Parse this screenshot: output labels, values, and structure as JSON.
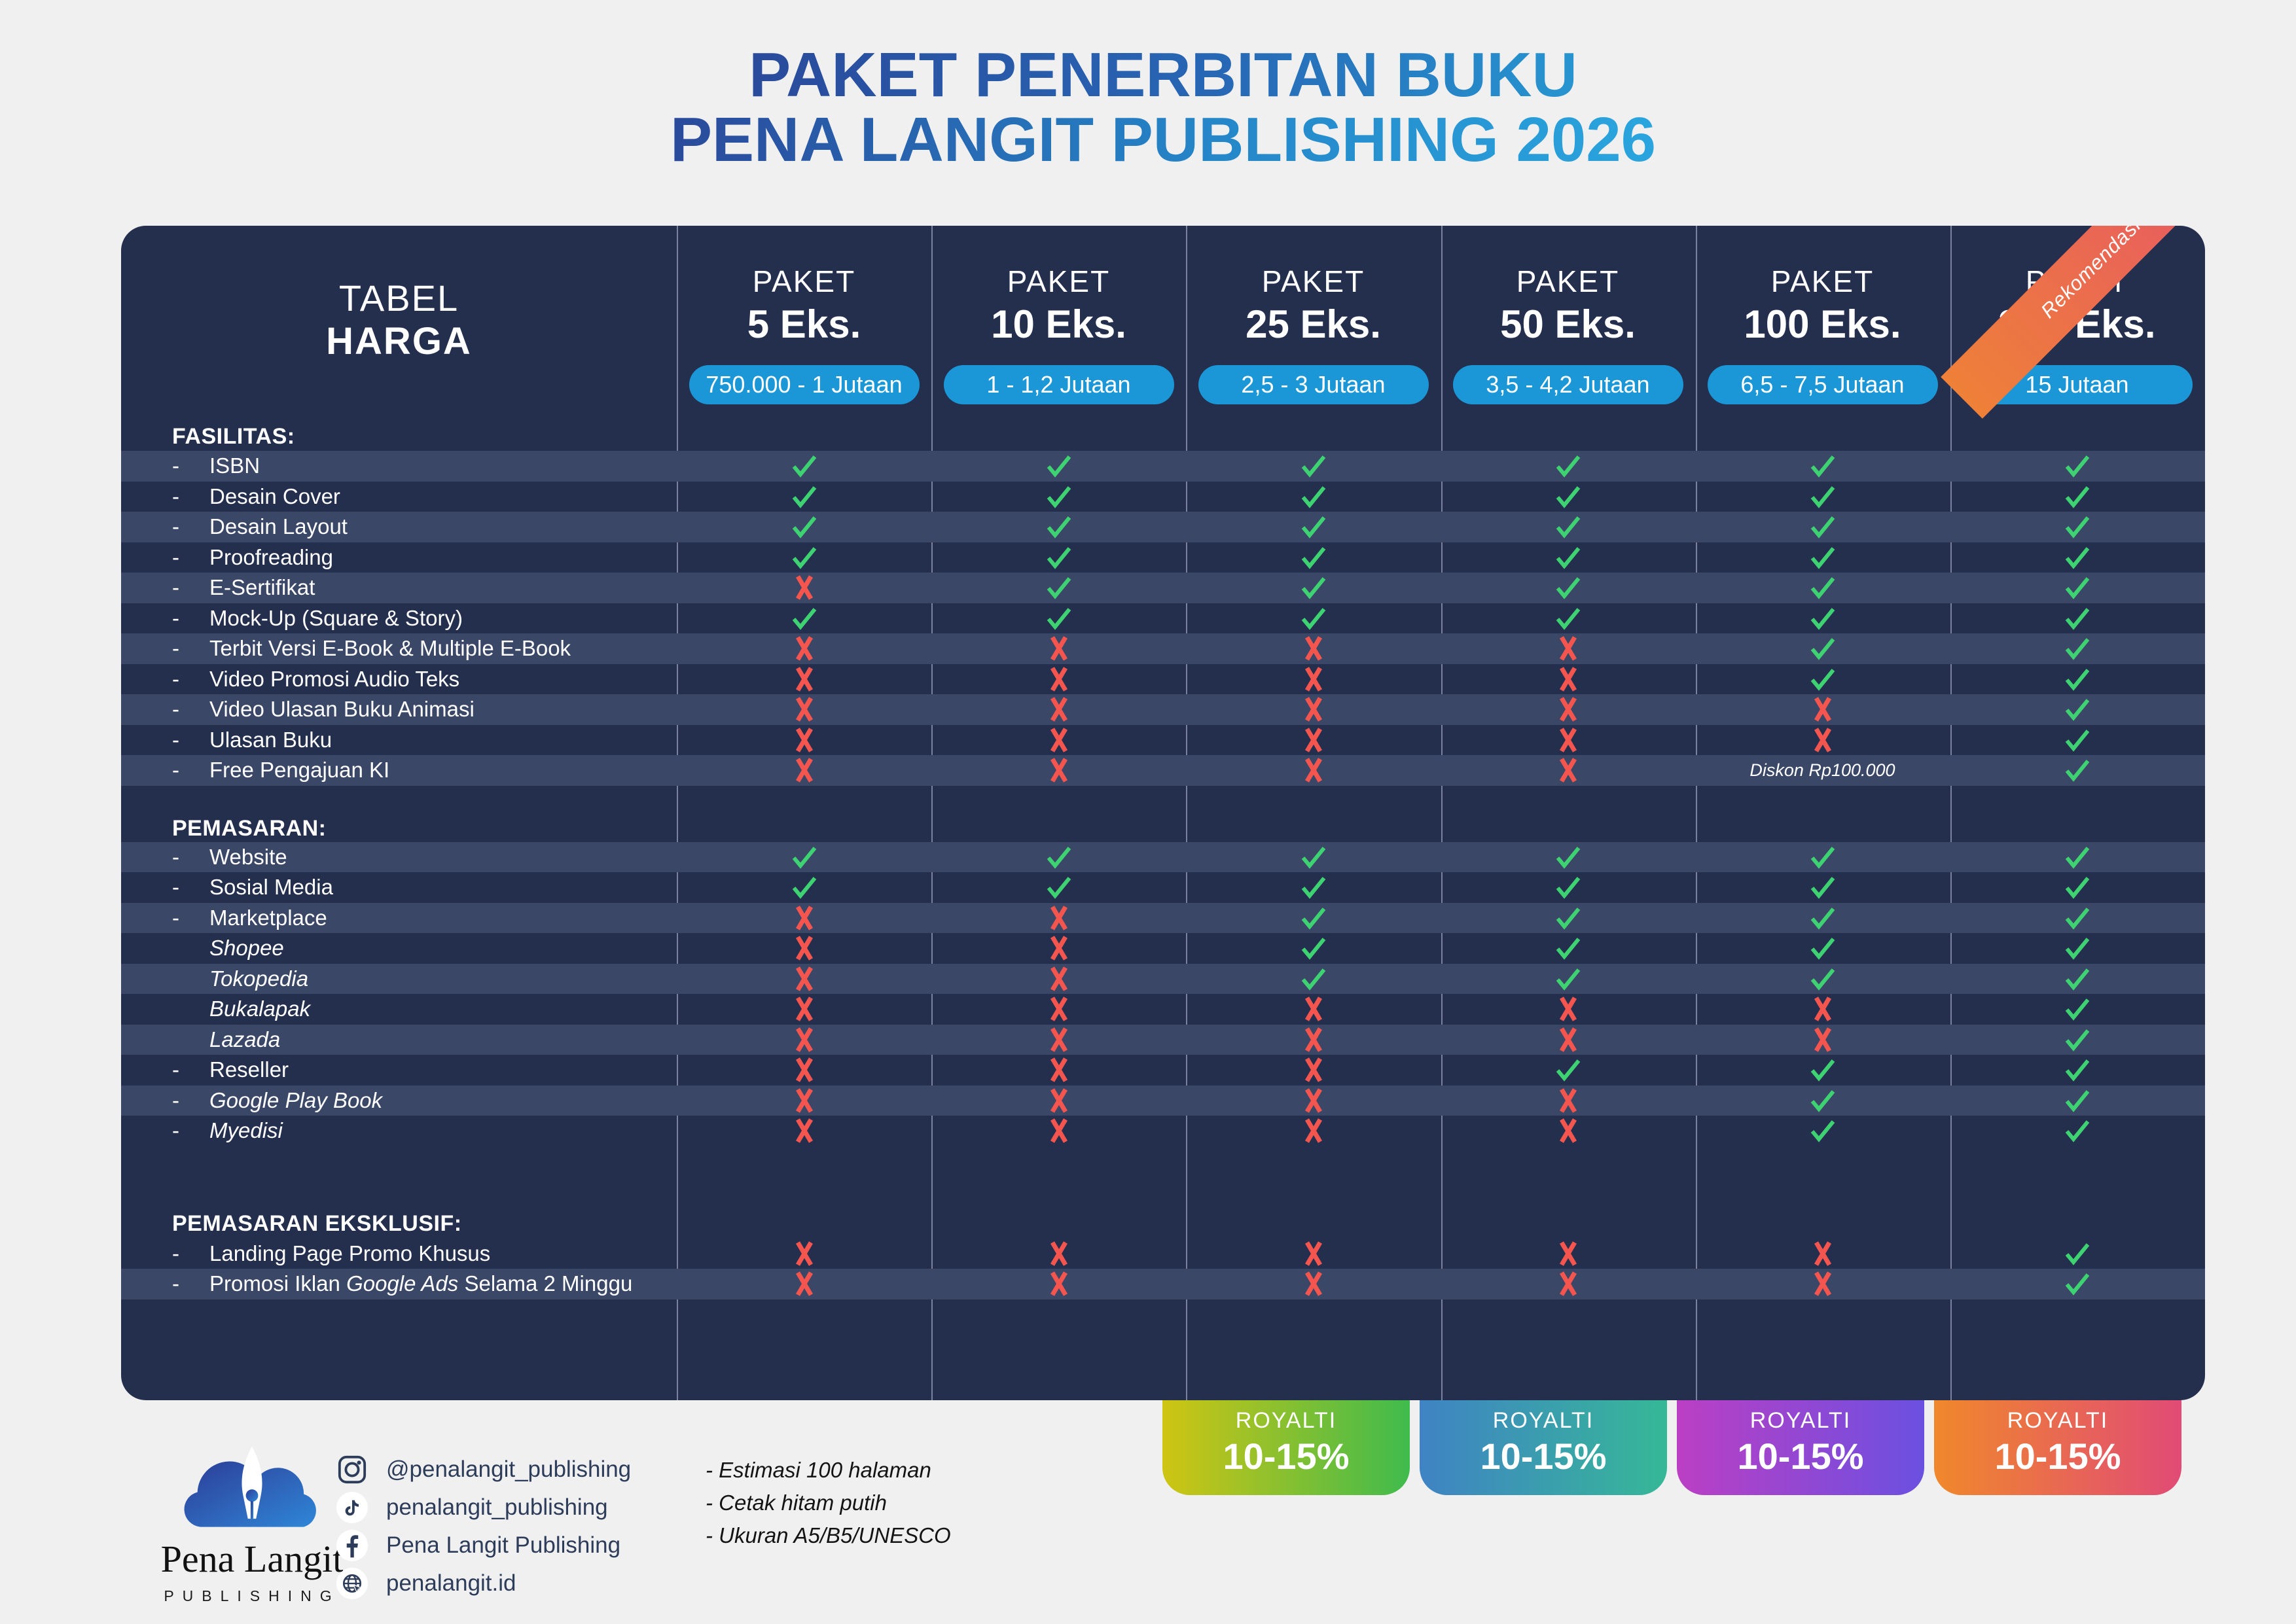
{
  "title": {
    "line1": "PAKET PENERBITAN BUKU",
    "line2": "PENA LANGIT PUBLISHING 2026"
  },
  "table": {
    "corner": {
      "line1": "TABEL",
      "line2": "HARGA"
    },
    "ribbon_label": "Rekomendasi",
    "diskon_note": "Diskon Rp100.000",
    "packages": [
      {
        "kicker": "PAKET",
        "qty": "5 Eks.",
        "price": "750.000 - 1 Jutaan",
        "recommended": false
      },
      {
        "kicker": "PAKET",
        "qty": "10 Eks.",
        "price": "1 - 1,2 Jutaan",
        "recommended": false
      },
      {
        "kicker": "PAKET",
        "qty": "25 Eks.",
        "price": "2,5 - 3 Jutaan",
        "recommended": false
      },
      {
        "kicker": "PAKET",
        "qty": "50 Eks.",
        "price": "3,5 - 4,2 Jutaan",
        "recommended": false
      },
      {
        "kicker": "PAKET",
        "qty": "100 Eks.",
        "price": "6,5 - 7,5 Jutaan",
        "recommended": false
      },
      {
        "kicker": "PAKET",
        "qty": "300 Eks.",
        "price": "15 Jutaan",
        "recommended": true
      }
    ],
    "sections": [
      {
        "heading": "FASILITAS:",
        "rows": [
          {
            "label": "ISBN",
            "dash": true,
            "italic": false,
            "marks": [
              "v",
              "v",
              "v",
              "v",
              "v",
              "v"
            ]
          },
          {
            "label": "Desain Cover",
            "dash": true,
            "italic": false,
            "marks": [
              "v",
              "v",
              "v",
              "v",
              "v",
              "v"
            ]
          },
          {
            "label": "Desain Layout",
            "dash": true,
            "italic": false,
            "marks": [
              "v",
              "v",
              "v",
              "v",
              "v",
              "v"
            ]
          },
          {
            "label": "Proofreading",
            "dash": true,
            "italic": false,
            "marks": [
              "v",
              "v",
              "v",
              "v",
              "v",
              "v"
            ]
          },
          {
            "label": "E-Sertifikat",
            "dash": true,
            "italic": false,
            "marks": [
              "x",
              "v",
              "v",
              "v",
              "v",
              "v"
            ]
          },
          {
            "label": "Mock-Up (Square & Story)",
            "dash": true,
            "italic": false,
            "marks": [
              "v",
              "v",
              "v",
              "v",
              "v",
              "v"
            ]
          },
          {
            "label": "Terbit Versi E-Book & Multiple E-Book",
            "dash": true,
            "italic": false,
            "marks": [
              "x",
              "x",
              "x",
              "x",
              "v",
              "v"
            ]
          },
          {
            "label": "Video Promosi Audio Teks",
            "dash": true,
            "italic": false,
            "marks": [
              "x",
              "x",
              "x",
              "x",
              "v",
              "v"
            ]
          },
          {
            "label": "Video Ulasan Buku Animasi",
            "dash": true,
            "italic": false,
            "marks": [
              "x",
              "x",
              "x",
              "x",
              "x",
              "v"
            ]
          },
          {
            "label": "Ulasan Buku",
            "dash": true,
            "italic": false,
            "marks": [
              "x",
              "x",
              "x",
              "x",
              "x",
              "v"
            ]
          },
          {
            "label": "Free Pengajuan KI",
            "dash": true,
            "italic": false,
            "marks": [
              "x",
              "x",
              "x",
              "x",
              "d",
              "v"
            ]
          }
        ]
      },
      {
        "heading": "PEMASARAN:",
        "rows": [
          {
            "label": "Website",
            "dash": true,
            "italic": false,
            "marks": [
              "v",
              "v",
              "v",
              "v",
              "v",
              "v"
            ]
          },
          {
            "label": "Sosial Media",
            "dash": true,
            "italic": false,
            "marks": [
              "v",
              "v",
              "v",
              "v",
              "v",
              "v"
            ]
          },
          {
            "label": "Marketplace",
            "dash": true,
            "italic": false,
            "marks": [
              "x",
              "x",
              "v",
              "v",
              "v",
              "v"
            ]
          },
          {
            "label": "Shopee",
            "dash": false,
            "italic": true,
            "marks": [
              "x",
              "x",
              "v",
              "v",
              "v",
              "v"
            ]
          },
          {
            "label": "Tokopedia",
            "dash": false,
            "italic": true,
            "marks": [
              "x",
              "x",
              "v",
              "v",
              "v",
              "v"
            ]
          },
          {
            "label": "Bukalapak",
            "dash": false,
            "italic": true,
            "marks": [
              "x",
              "x",
              "x",
              "x",
              "x",
              "v"
            ]
          },
          {
            "label": "Lazada",
            "dash": false,
            "italic": true,
            "marks": [
              "x",
              "x",
              "x",
              "x",
              "x",
              "v"
            ]
          },
          {
            "label": "Reseller",
            "dash": true,
            "italic": false,
            "marks": [
              "x",
              "x",
              "x",
              "v",
              "v",
              "v"
            ]
          },
          {
            "label": "Google Play Book",
            "dash": true,
            "italic": true,
            "marks": [
              "x",
              "x",
              "x",
              "x",
              "v",
              "v"
            ]
          },
          {
            "label": "Myedisi",
            "dash": true,
            "italic": true,
            "marks": [
              "x",
              "x",
              "x",
              "x",
              "v",
              "v"
            ]
          }
        ]
      },
      {
        "heading": "PEMASARAN EKSKLUSIF:",
        "rows": [
          {
            "label": "Landing Page Promo Khusus",
            "dash": true,
            "italic": false,
            "marks": [
              "x",
              "x",
              "x",
              "x",
              "x",
              "v"
            ]
          },
          {
            "label": "Promosi Iklan Google Ads Selama 2 Minggu",
            "dash": true,
            "italic": false,
            "parts": [
              {
                "text": "Promosi Iklan "
              },
              {
                "text": "Google Ads",
                "italic": true
              },
              {
                "text": " Selama 2 Minggu"
              }
            ],
            "marks": [
              "x",
              "x",
              "x",
              "x",
              "x",
              "v"
            ]
          }
        ]
      }
    ]
  },
  "royalti": {
    "label": "ROYALTI",
    "value": "10-15%",
    "applies_to": [
      "25 Eks.",
      "50 Eks.",
      "100 Eks.",
      "300 Eks."
    ]
  },
  "footer": {
    "logo": {
      "name": "Pena Langit",
      "sub": "PUBLISHING"
    },
    "socials": [
      {
        "icon": "instagram-icon",
        "text": "@penalangit_publishing"
      },
      {
        "icon": "tiktok-icon",
        "text": "penalangit_publishing"
      },
      {
        "icon": "facebook-icon",
        "text": "Pena Langit Publishing"
      },
      {
        "icon": "globe-icon",
        "text": "penalangit.id"
      }
    ],
    "notes": [
      "- Estimasi 100 halaman",
      "- Cetak hitam putih",
      "- Ukuran A5/B5/UNESCO"
    ]
  },
  "colors": {
    "page_bg": "#f0f0f1",
    "card_bg": "#242f4e",
    "stripe": "#3a4766",
    "pill_blue": "#1b97d8",
    "check_green": "#3ed273",
    "cross_red": "#f4564f",
    "ribbon_gradient": [
      "#ee8038",
      "#e75568"
    ],
    "royalti_gradients": [
      [
        "#cfc513",
        "#3fbb4d"
      ],
      [
        "#3f83c4",
        "#36b897"
      ],
      [
        "#bb3fc4",
        "#6b50e0"
      ],
      [
        "#f0882b",
        "#e14b76"
      ]
    ]
  }
}
